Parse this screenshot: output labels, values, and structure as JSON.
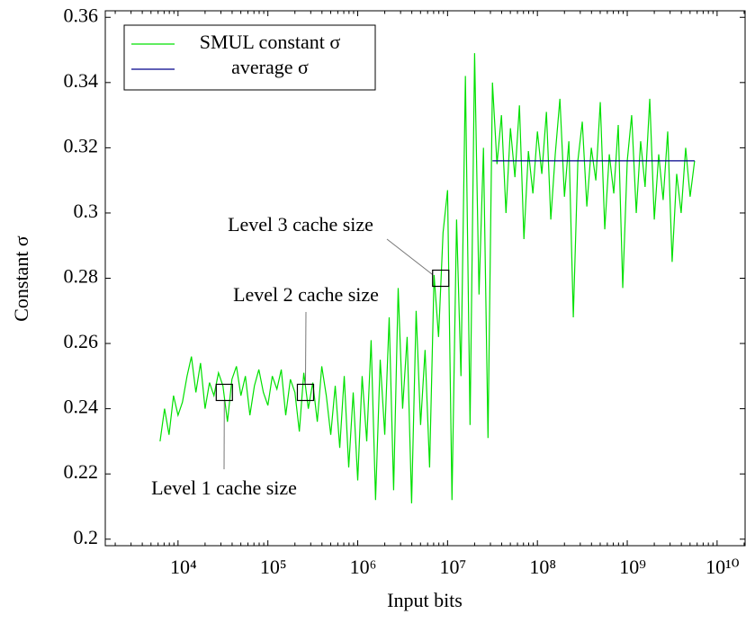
{
  "chart_data": {
    "type": "line",
    "xlabel": "Input bits",
    "ylabel": "Constant σ",
    "xscale": "log",
    "xlim": [
      1550,
      20500000000.0
    ],
    "ylim": [
      0.198,
      0.362
    ],
    "xticks": [
      {
        "value": 10000.0,
        "label": "10⁴"
      },
      {
        "value": 100000.0,
        "label": "10⁵"
      },
      {
        "value": 1000000.0,
        "label": "10⁶"
      },
      {
        "value": 10000000.0,
        "label": "10⁷"
      },
      {
        "value": 100000000.0,
        "label": "10⁸"
      },
      {
        "value": 1000000000.0,
        "label": "10⁹"
      },
      {
        "value": 10000000000.0,
        "label": "10¹⁰"
      }
    ],
    "yticks": [
      0.2,
      0.22,
      0.24,
      0.26,
      0.28,
      0.3,
      0.32,
      0.34,
      0.36
    ],
    "legend": "upper left",
    "series": [
      {
        "name": "SMUL constant σ",
        "color": "#00e000",
        "x": [
          6310.0,
          7080.0,
          7940.0,
          8910.0,
          10000.0,
          11200.0,
          12600.0,
          14100.0,
          15800.0,
          17800.0,
          20000.0,
          22400.0,
          25100.0,
          28200.0,
          31600.0,
          35500.0,
          39800.0,
          44700.0,
          50100.0,
          56200.0,
          63100.0,
          70800.0,
          79400.0,
          89100.0,
          100000.0,
          112000.0,
          126000.0,
          141000.0,
          158000.0,
          178000.0,
          200000.0,
          224000.0,
          251000.0,
          282000.0,
          316000.0,
          355000.0,
          398000.0,
          447000.0,
          501000.0,
          562000.0,
          631000.0,
          708000.0,
          794000.0,
          891000.0,
          1000000.0,
          1120000.0,
          1260000.0,
          1410000.0,
          1580000.0,
          1780000.0,
          2000000.0,
          2240000.0,
          2510000.0,
          2820000.0,
          3160000.0,
          3550000.0,
          3980000.0,
          4470000.0,
          5010000.0,
          5620000.0,
          6310000.0,
          7080000.0,
          7940000.0,
          8910000.0,
          10000000.0,
          11200000.0,
          12600000.0,
          14100000.0,
          15800000.0,
          17800000.0,
          20000000.0,
          22400000.0,
          25100000.0,
          28200000.0,
          31600000.0,
          35500000.0,
          39800000.0,
          44700000.0,
          50100000.0,
          56200000.0,
          63100000.0,
          70800000.0,
          79400000.0,
          89100000.0,
          100000000.0,
          112000000.0,
          126000000.0,
          141000000.0,
          158000000.0,
          178000000.0,
          200000000.0,
          224000000.0,
          251000000.0,
          282000000.0,
          316000000.0,
          355000000.0,
          398000000.0,
          447000000.0,
          501000000.0,
          562000000.0,
          631000000.0,
          708000000.0,
          794000000.0,
          891000000.0,
          1000000000.0,
          1120000000.0,
          1260000000.0,
          1410000000.0,
          1580000000.0,
          1780000000.0,
          2000000000.0,
          2240000000.0,
          2510000000.0,
          2820000000.0,
          3160000000.0,
          3550000000.0,
          3980000000.0,
          4470000000.0,
          5010000000.0,
          5620000000.0
        ],
        "values": [
          0.23,
          0.24,
          0.232,
          0.244,
          0.238,
          0.242,
          0.25,
          0.256,
          0.245,
          0.254,
          0.24,
          0.248,
          0.244,
          0.251,
          0.247,
          0.236,
          0.249,
          0.253,
          0.244,
          0.25,
          0.238,
          0.247,
          0.252,
          0.245,
          0.241,
          0.25,
          0.246,
          0.252,
          0.238,
          0.249,
          0.245,
          0.233,
          0.251,
          0.24,
          0.248,
          0.236,
          0.253,
          0.244,
          0.232,
          0.247,
          0.228,
          0.25,
          0.222,
          0.245,
          0.218,
          0.25,
          0.23,
          0.261,
          0.212,
          0.255,
          0.232,
          0.268,
          0.215,
          0.277,
          0.24,
          0.262,
          0.211,
          0.27,
          0.235,
          0.258,
          0.222,
          0.281,
          0.262,
          0.294,
          0.307,
          0.212,
          0.298,
          0.25,
          0.342,
          0.235,
          0.349,
          0.275,
          0.32,
          0.231,
          0.34,
          0.315,
          0.33,
          0.3,
          0.326,
          0.311,
          0.333,
          0.292,
          0.319,
          0.306,
          0.325,
          0.312,
          0.331,
          0.298,
          0.318,
          0.335,
          0.305,
          0.322,
          0.268,
          0.316,
          0.328,
          0.302,
          0.32,
          0.31,
          0.334,
          0.295,
          0.318,
          0.306,
          0.327,
          0.277,
          0.316,
          0.33,
          0.3,
          0.322,
          0.308,
          0.335,
          0.298,
          0.318,
          0.304,
          0.325,
          0.285,
          0.312,
          0.3,
          0.32,
          0.305,
          0.316
        ]
      },
      {
        "name": "average σ",
        "color": "#00008b",
        "x": [
          31600000.0,
          5620000000.0
        ],
        "values": [
          0.316,
          0.316
        ]
      }
    ],
    "annotations": [
      {
        "text": "Level 1 cache size",
        "x": 32768,
        "y": 0.245
      },
      {
        "text": "Level 2 cache size",
        "x": 262144,
        "y": 0.245
      },
      {
        "text": "Level 3 cache size",
        "x": 8388608,
        "y": 0.28
      }
    ]
  }
}
